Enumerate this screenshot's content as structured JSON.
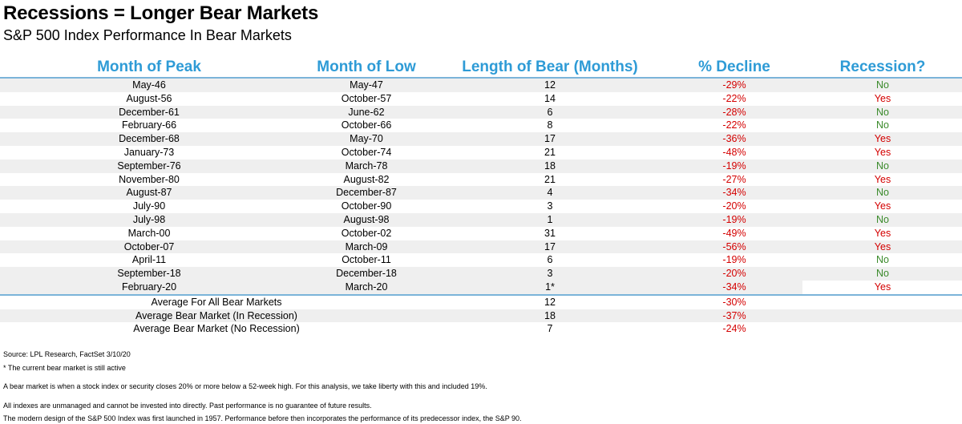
{
  "title": "Recessions = Longer Bear Markets",
  "subtitle": "S&P 500 Index Performance In Bear Markets",
  "headers": [
    "Month of Peak",
    "Month of Low",
    "Length of Bear (Months)",
    "% Decline",
    "Recession?"
  ],
  "rows": [
    {
      "peak": "May-46",
      "low": "May-47",
      "length": "12",
      "decline": "-29%",
      "recession": "No"
    },
    {
      "peak": "August-56",
      "low": "October-57",
      "length": "14",
      "decline": "-22%",
      "recession": "Yes"
    },
    {
      "peak": "December-61",
      "low": "June-62",
      "length": "6",
      "decline": "-28%",
      "recession": "No"
    },
    {
      "peak": "February-66",
      "low": "October-66",
      "length": "8",
      "decline": "-22%",
      "recession": "No"
    },
    {
      "peak": "December-68",
      "low": "May-70",
      "length": "17",
      "decline": "-36%",
      "recession": "Yes"
    },
    {
      "peak": "January-73",
      "low": "October-74",
      "length": "21",
      "decline": "-48%",
      "recession": "Yes"
    },
    {
      "peak": "September-76",
      "low": "March-78",
      "length": "18",
      "decline": "-19%",
      "recession": "No"
    },
    {
      "peak": "November-80",
      "low": "August-82",
      "length": "21",
      "decline": "-27%",
      "recession": "Yes"
    },
    {
      "peak": "August-87",
      "low": "December-87",
      "length": "4",
      "decline": "-34%",
      "recession": "No"
    },
    {
      "peak": "July-90",
      "low": "October-90",
      "length": "3",
      "decline": "-20%",
      "recession": "Yes"
    },
    {
      "peak": "July-98",
      "low": "August-98",
      "length": "1",
      "decline": "-19%",
      "recession": "No"
    },
    {
      "peak": "March-00",
      "low": "October-02",
      "length": "31",
      "decline": "-49%",
      "recession": "Yes"
    },
    {
      "peak": "October-07",
      "low": "March-09",
      "length": "17",
      "decline": "-56%",
      "recession": "Yes"
    },
    {
      "peak": "April-11",
      "low": "October-11",
      "length": "6",
      "decline": "-19%",
      "recession": "No"
    },
    {
      "peak": "September-18",
      "low": "December-18",
      "length": "3",
      "decline": "-20%",
      "recession": "No"
    },
    {
      "peak": "February-20",
      "low": "March-20",
      "length": "1*",
      "decline": "-34%",
      "recession": "Yes"
    }
  ],
  "averages": [
    {
      "label": "Average For All Bear Markets",
      "length": "12",
      "decline": "-30%"
    },
    {
      "label": "Average Bear Market (In Recession)",
      "length": "18",
      "decline": "-37%"
    },
    {
      "label": "Average Bear Market (No Recession)",
      "length": "7",
      "decline": "-24%"
    }
  ],
  "notes": [
    "Source: LPL Research, FactSet 3/10/20",
    "* The current bear market is still active",
    "A bear market is when a stock index or security closes 20% or more below a 52-week high. For this analysis, we take liberty with this and included 19%.",
    "All indexes are unmanaged and cannot be invested into directly. Past performance is no guarantee of future results.",
    "The modern design of the S&P 500 Index was first launched in 1957. Performance before then incorporates the performance of its predecessor index, the S&P 90."
  ],
  "colors": {
    "header": "#2e9bd6",
    "decline": "#d40000",
    "yes": "#d40000",
    "no": "#3a8a2a",
    "rule": "#7bb4d9",
    "shade": "#efefef"
  }
}
